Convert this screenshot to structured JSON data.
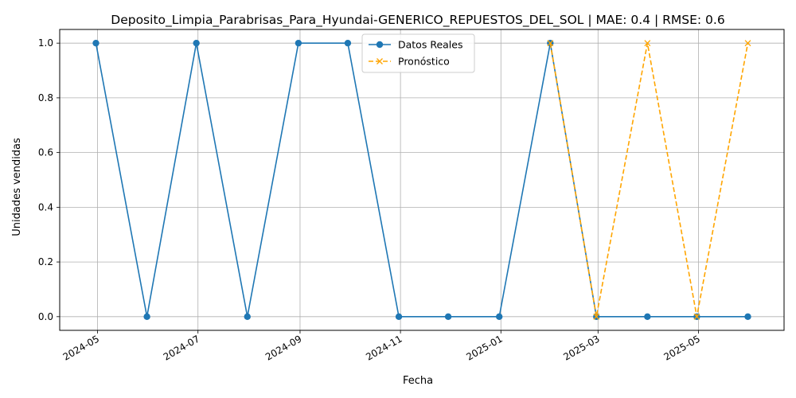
{
  "chart_data": {
    "type": "line",
    "title": "Deposito_Limpia_Parabrisas_Para_Hyundai-GENERICO_REPUESTOS_DEL_SOL | MAE: 0.4 | RMSE: 0.6",
    "xlabel": "Fecha",
    "ylabel": "Unidades vendidas",
    "grid": true,
    "legend_position": "top-center",
    "xlim": [
      "2024-04-08",
      "2025-06-22"
    ],
    "ylim": [
      -0.05,
      1.05
    ],
    "x_ticks": [
      "2024-05",
      "2024-07",
      "2024-09",
      "2024-11",
      "2025-01",
      "2025-03",
      "2025-05"
    ],
    "y_ticks": [
      "0.0",
      "0.2",
      "0.4",
      "0.6",
      "0.8",
      "1.0"
    ],
    "series": [
      {
        "name": "Datos Reales",
        "color": "#1f77b4",
        "style": "solid",
        "marker": "circle",
        "points": [
          {
            "x": "2024-04-30",
            "y": 1
          },
          {
            "x": "2024-05-31",
            "y": 0
          },
          {
            "x": "2024-06-30",
            "y": 1
          },
          {
            "x": "2024-07-31",
            "y": 0
          },
          {
            "x": "2024-08-31",
            "y": 1
          },
          {
            "x": "2024-09-30",
            "y": 1
          },
          {
            "x": "2024-10-31",
            "y": 0
          },
          {
            "x": "2024-11-30",
            "y": 0
          },
          {
            "x": "2024-12-31",
            "y": 0
          },
          {
            "x": "2025-01-31",
            "y": 1
          },
          {
            "x": "2025-02-28",
            "y": 0
          },
          {
            "x": "2025-03-31",
            "y": 0
          },
          {
            "x": "2025-04-30",
            "y": 0
          },
          {
            "x": "2025-05-31",
            "y": 0
          }
        ]
      },
      {
        "name": "Pronóstico",
        "color": "#ffa500",
        "style": "dashed",
        "marker": "x",
        "points": [
          {
            "x": "2025-01-31",
            "y": 1
          },
          {
            "x": "2025-02-28",
            "y": 0
          },
          {
            "x": "2025-03-31",
            "y": 1
          },
          {
            "x": "2025-04-30",
            "y": 0
          },
          {
            "x": "2025-05-31",
            "y": 1
          }
        ]
      }
    ]
  }
}
